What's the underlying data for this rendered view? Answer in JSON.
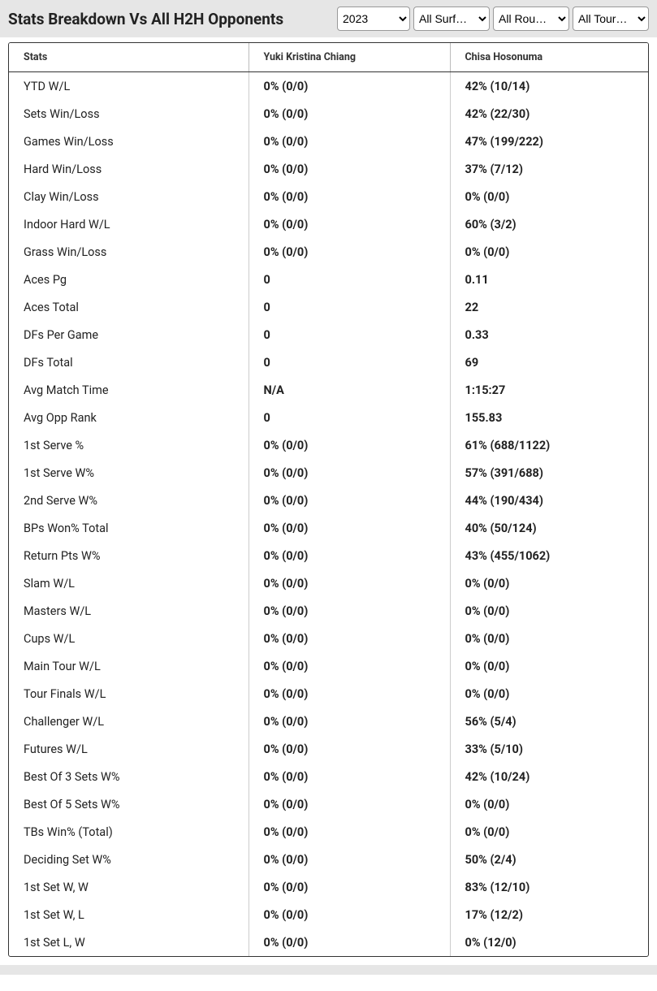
{
  "header": {
    "title": "Stats Breakdown Vs All H2H Opponents",
    "filters": {
      "year_selected": "2023",
      "surface_selected": "All Surf…",
      "round_selected": "All Rou…",
      "tour_selected": "All Tour…"
    }
  },
  "table": {
    "columns": [
      "Stats",
      "Yuki Kristina Chiang",
      "Chisa Hosonuma"
    ],
    "rows": [
      [
        "YTD W/L",
        "0% (0/0)",
        "42% (10/14)"
      ],
      [
        "Sets Win/Loss",
        "0% (0/0)",
        "42% (22/30)"
      ],
      [
        "Games Win/Loss",
        "0% (0/0)",
        "47% (199/222)"
      ],
      [
        "Hard Win/Loss",
        "0% (0/0)",
        "37% (7/12)"
      ],
      [
        "Clay Win/Loss",
        "0% (0/0)",
        "0% (0/0)"
      ],
      [
        "Indoor Hard W/L",
        "0% (0/0)",
        "60% (3/2)"
      ],
      [
        "Grass Win/Loss",
        "0% (0/0)",
        "0% (0/0)"
      ],
      [
        "Aces Pg",
        "0",
        "0.11"
      ],
      [
        "Aces Total",
        "0",
        "22"
      ],
      [
        "DFs Per Game",
        "0",
        "0.33"
      ],
      [
        "DFs Total",
        "0",
        "69"
      ],
      [
        "Avg Match Time",
        "N/A",
        "1:15:27"
      ],
      [
        "Avg Opp Rank",
        "0",
        "155.83"
      ],
      [
        "1st Serve %",
        "0% (0/0)",
        "61% (688/1122)"
      ],
      [
        "1st Serve W%",
        "0% (0/0)",
        "57% (391/688)"
      ],
      [
        "2nd Serve W%",
        "0% (0/0)",
        "44% (190/434)"
      ],
      [
        "BPs Won% Total",
        "0% (0/0)",
        "40% (50/124)"
      ],
      [
        "Return Pts W%",
        "0% (0/0)",
        "43% (455/1062)"
      ],
      [
        "Slam W/L",
        "0% (0/0)",
        "0% (0/0)"
      ],
      [
        "Masters W/L",
        "0% (0/0)",
        "0% (0/0)"
      ],
      [
        "Cups W/L",
        "0% (0/0)",
        "0% (0/0)"
      ],
      [
        "Main Tour W/L",
        "0% (0/0)",
        "0% (0/0)"
      ],
      [
        "Tour Finals W/L",
        "0% (0/0)",
        "0% (0/0)"
      ],
      [
        "Challenger W/L",
        "0% (0/0)",
        "56% (5/4)"
      ],
      [
        "Futures W/L",
        "0% (0/0)",
        "33% (5/10)"
      ],
      [
        "Best Of 3 Sets W%",
        "0% (0/0)",
        "42% (10/24)"
      ],
      [
        "Best Of 5 Sets W%",
        "0% (0/0)",
        "0% (0/0)"
      ],
      [
        "TBs Win% (Total)",
        "0% (0/0)",
        "0% (0/0)"
      ],
      [
        "Deciding Set W%",
        "0% (0/0)",
        "50% (2/4)"
      ],
      [
        "1st Set W, W",
        "0% (0/0)",
        "83% (12/10)"
      ],
      [
        "1st Set W, L",
        "0% (0/0)",
        "17% (12/2)"
      ],
      [
        "1st Set L, W",
        "0% (0/0)",
        "0% (12/0)"
      ]
    ]
  },
  "style": {
    "header_bg": "#e6e6e6",
    "border_color": "#333333",
    "cell_divider": "#cccccc",
    "text_color": "#222222",
    "font_bold_weight": 700
  }
}
